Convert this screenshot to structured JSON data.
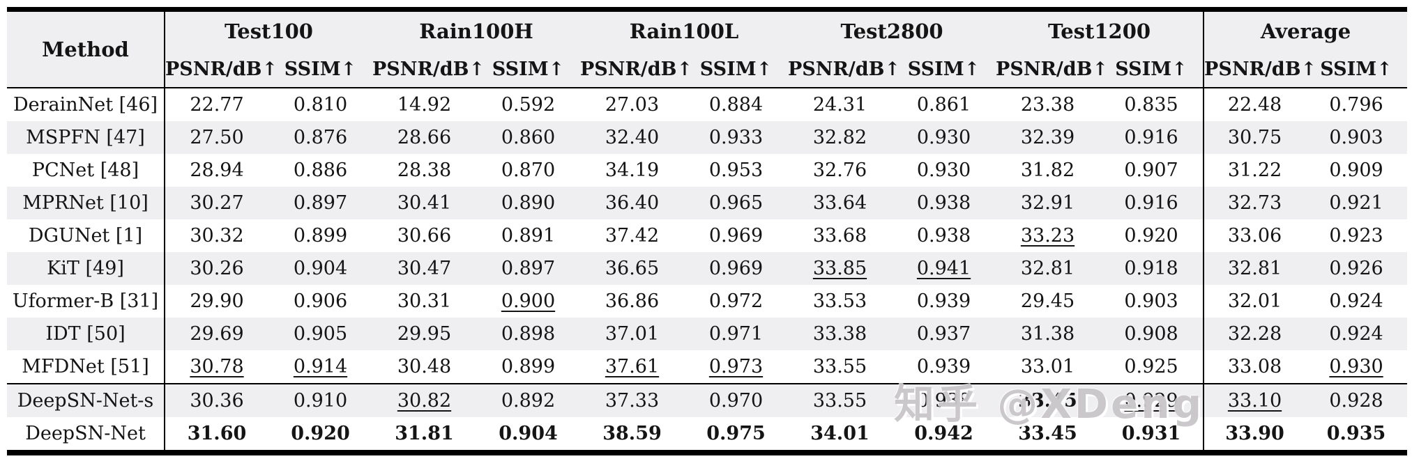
{
  "table": {
    "method_header": "Method",
    "groups": [
      "Test100",
      "Rain100H",
      "Rain100L",
      "Test2800",
      "Test1200",
      "Average"
    ],
    "metrics": [
      "PSNR/dB↑",
      "SSIM↑"
    ],
    "rows": [
      {
        "method": "DerainNet [46]",
        "values": [
          "22.77",
          "0.810",
          "14.92",
          "0.592",
          "27.03",
          "0.884",
          "24.31",
          "0.861",
          "23.38",
          "0.835",
          "22.48",
          "0.796"
        ],
        "styles": [
          "",
          "",
          "",
          "",
          "",
          "",
          "",
          "",
          "",
          "",
          "",
          ""
        ]
      },
      {
        "method": "MSPFN [47]",
        "values": [
          "27.50",
          "0.876",
          "28.66",
          "0.860",
          "32.40",
          "0.933",
          "32.82",
          "0.930",
          "32.39",
          "0.916",
          "30.75",
          "0.903"
        ],
        "styles": [
          "",
          "",
          "",
          "",
          "",
          "",
          "",
          "",
          "",
          "",
          "",
          ""
        ]
      },
      {
        "method": "PCNet [48]",
        "values": [
          "28.94",
          "0.886",
          "28.38",
          "0.870",
          "34.19",
          "0.953",
          "32.76",
          "0.930",
          "31.82",
          "0.907",
          "31.22",
          "0.909"
        ],
        "styles": [
          "",
          "",
          "",
          "",
          "",
          "",
          "",
          "",
          "",
          "",
          "",
          ""
        ]
      },
      {
        "method": "MPRNet [10]",
        "values": [
          "30.27",
          "0.897",
          "30.41",
          "0.890",
          "36.40",
          "0.965",
          "33.64",
          "0.938",
          "32.91",
          "0.916",
          "32.73",
          "0.921"
        ],
        "styles": [
          "",
          "",
          "",
          "",
          "",
          "",
          "",
          "",
          "",
          "",
          "",
          ""
        ]
      },
      {
        "method": "DGUNet [1]",
        "values": [
          "30.32",
          "0.899",
          "30.66",
          "0.891",
          "37.42",
          "0.969",
          "33.68",
          "0.938",
          "33.23",
          "0.920",
          "33.06",
          "0.923"
        ],
        "styles": [
          "",
          "",
          "",
          "",
          "",
          "",
          "",
          "",
          "u",
          "",
          "",
          ""
        ]
      },
      {
        "method": "KiT [49]",
        "values": [
          "30.26",
          "0.904",
          "30.47",
          "0.897",
          "36.65",
          "0.969",
          "33.85",
          "0.941",
          "32.81",
          "0.918",
          "32.81",
          "0.926"
        ],
        "styles": [
          "",
          "",
          "",
          "",
          "",
          "",
          "u",
          "u",
          "",
          "",
          "",
          ""
        ]
      },
      {
        "method": "Uformer-B [31]",
        "values": [
          "29.90",
          "0.906",
          "30.31",
          "0.900",
          "36.86",
          "0.972",
          "33.53",
          "0.939",
          "29.45",
          "0.903",
          "32.01",
          "0.924"
        ],
        "styles": [
          "",
          "",
          "",
          "u",
          "",
          "",
          "",
          "",
          "",
          "",
          "",
          ""
        ]
      },
      {
        "method": "IDT [50]",
        "values": [
          "29.69",
          "0.905",
          "29.95",
          "0.898",
          "37.01",
          "0.971",
          "33.38",
          "0.937",
          "31.38",
          "0.908",
          "32.28",
          "0.924"
        ],
        "styles": [
          "",
          "",
          "",
          "",
          "",
          "",
          "",
          "",
          "",
          "",
          "",
          ""
        ]
      },
      {
        "method": "MFDNet [51]",
        "values": [
          "30.78",
          "0.914",
          "30.48",
          "0.899",
          "37.61",
          "0.973",
          "33.55",
          "0.939",
          "33.01",
          "0.925",
          "33.08",
          "0.930"
        ],
        "styles": [
          "u",
          "u",
          "",
          "",
          "u",
          "u",
          "",
          "",
          "",
          "",
          "",
          "u"
        ]
      },
      {
        "method": "DeepSN-Net-s",
        "separator_above": true,
        "values": [
          "30.36",
          "0.910",
          "30.82",
          "0.892",
          "37.33",
          "0.970",
          "33.55",
          "0.938",
          "33.45",
          "0.929",
          "33.10",
          "0.928"
        ],
        "styles": [
          "",
          "",
          "u",
          "",
          "",
          "",
          "",
          "",
          "b",
          "u",
          "u",
          ""
        ]
      },
      {
        "method": "DeepSN-Net",
        "values": [
          "31.60",
          "0.920",
          "31.81",
          "0.904",
          "38.59",
          "0.975",
          "34.01",
          "0.942",
          "33.45",
          "0.931",
          "33.90",
          "0.935"
        ],
        "styles": [
          "b",
          "b",
          "b",
          "b",
          "b",
          "b",
          "b",
          "b",
          "b",
          "b",
          "b",
          "b"
        ]
      }
    ]
  },
  "watermark": {
    "text": "知乎 @XDeng"
  },
  "colors": {
    "header_bg": "#efeef0",
    "zebra_bg": "#efeef0",
    "border": "#000000",
    "text": "#141414",
    "watermark": "#c1bec2"
  }
}
